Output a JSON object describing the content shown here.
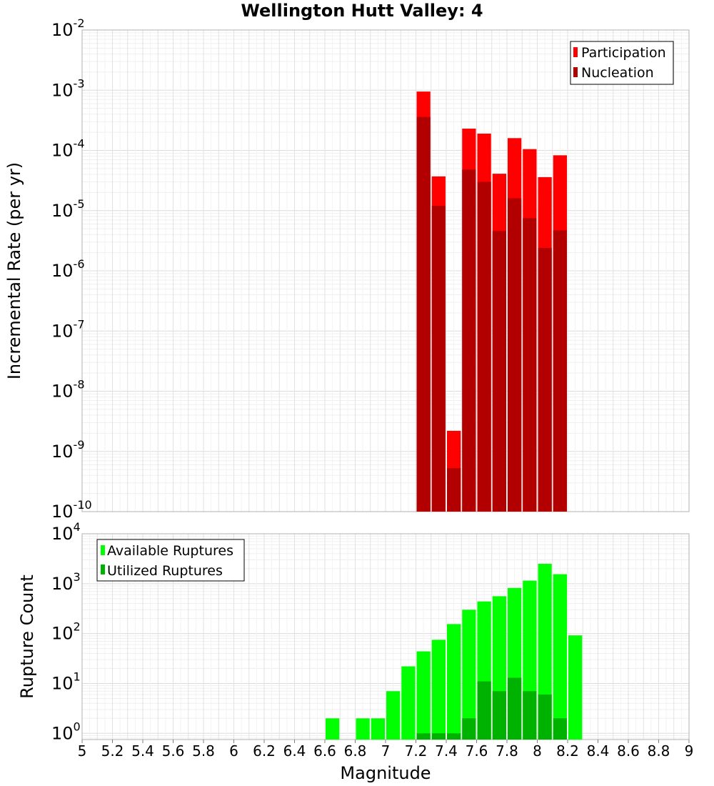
{
  "chart_data": [
    {
      "type": "bar",
      "title": "Wellington Hutt Valley: 4",
      "xlabel": "",
      "ylabel": "Incremental Rate (per yr)",
      "yscale": "log",
      "xlim": [
        5,
        9
      ],
      "ylim": [
        1e-10,
        0.01
      ],
      "ytick_exponents": [
        "-10",
        "-9",
        "-8",
        "-7",
        "-6",
        "-5",
        "-4",
        "-3",
        "-2"
      ],
      "grid": true,
      "legend_position": "top-right",
      "bar_width": 0.1,
      "x": [
        7.25,
        7.35,
        7.45,
        7.55,
        7.65,
        7.75,
        7.85,
        7.95,
        8.05,
        8.15
      ],
      "series": [
        {
          "name": "Participation",
          "color": "#ff0000",
          "values": [
            0.00095,
            3.7e-05,
            2.2e-09,
            0.00023,
            0.00019,
            4.1e-05,
            0.00016,
            0.000105,
            3.6e-05,
            8.3e-05
          ]
        },
        {
          "name": "Nucleation",
          "color": "#b20000",
          "values": [
            0.00036,
            1.2e-05,
            5.3e-10,
            4.8e-05,
            3e-05,
            4.6e-06,
            1.6e-05,
            7.5e-06,
            2.4e-06,
            4.7e-06
          ]
        }
      ]
    },
    {
      "type": "bar",
      "title": "",
      "xlabel": "Magnitude",
      "ylabel": "Rupture Count",
      "yscale": "log",
      "xlim": [
        5,
        9
      ],
      "ylim": [
        0.75,
        10000
      ],
      "ytick_exponents": [
        "0",
        "1",
        "2",
        "3",
        "4"
      ],
      "xticks": [
        "5",
        "5.2",
        "5.4",
        "5.6",
        "5.8",
        "6",
        "6.2",
        "6.4",
        "6.6",
        "6.8",
        "7",
        "7.2",
        "7.4",
        "7.6",
        "7.8",
        "8",
        "8.2",
        "8.4",
        "8.6",
        "8.8",
        "9"
      ],
      "grid": true,
      "legend_position": "top-left",
      "bar_width": 0.1,
      "x": [
        6.65,
        6.85,
        6.95,
        7.05,
        7.15,
        7.25,
        7.35,
        7.45,
        7.55,
        7.65,
        7.75,
        7.85,
        7.95,
        8.05,
        8.15,
        8.25
      ],
      "series": [
        {
          "name": "Available Ruptures",
          "color": "#00ff00",
          "values": [
            2,
            2,
            2,
            7,
            22,
            44,
            75,
            155,
            300,
            440,
            560,
            820,
            1150,
            2500,
            1550,
            92
          ]
        },
        {
          "name": "Utilized Ruptures",
          "color": "#00b200",
          "values": [
            0,
            0,
            0,
            0,
            0,
            1,
            1,
            1,
            2,
            11,
            7,
            13,
            7,
            6,
            2,
            0
          ]
        }
      ]
    }
  ]
}
